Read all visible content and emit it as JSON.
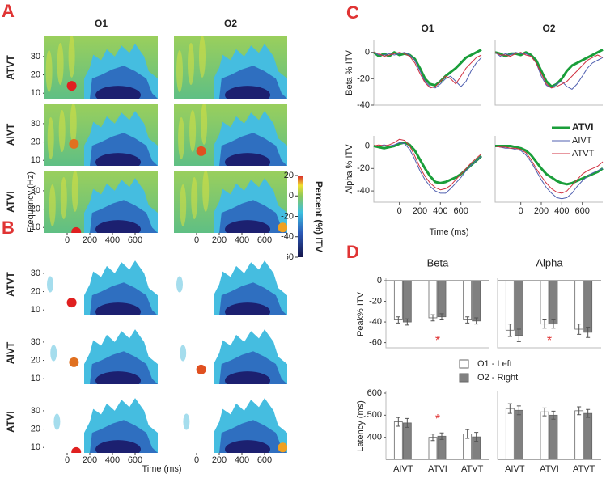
{
  "chart_data": [
    {
      "type": "heatmap",
      "panel": "A",
      "columns": [
        "O1",
        "O2"
      ],
      "rows": [
        "ATVT",
        "AIVT",
        "ATVI"
      ],
      "xlim": [
        -200,
        800
      ],
      "xticks": [
        0,
        200,
        400,
        600
      ],
      "ylim": [
        7,
        41
      ],
      "yticks": [
        10,
        20,
        30
      ],
      "colorbar": {
        "label": "Percent (%) ITV",
        "lim": [
          -60,
          20
        ],
        "ticks": [
          20,
          0,
          -20,
          -40,
          -60
        ]
      }
    },
    {
      "type": "heatmap",
      "panel": "B",
      "rows": [
        "ATVT",
        "AIVT",
        "ATVI"
      ],
      "thresholded": true,
      "xlim": [
        -200,
        800
      ],
      "xticks": [
        0,
        200,
        400,
        600
      ],
      "ylim": [
        7,
        41
      ],
      "yticks": [
        10,
        20,
        30
      ],
      "xlabel": "Time (ms)",
      "ylabel": "Frequency (Hz)"
    },
    {
      "type": "line",
      "panel": "C",
      "columns": [
        "O1",
        "O2"
      ],
      "xlabel": "Time (ms)",
      "x": [
        -250,
        -200,
        -150,
        -100,
        -50,
        0,
        50,
        100,
        150,
        200,
        250,
        300,
        350,
        400,
        450,
        500,
        550,
        600,
        650,
        700,
        750,
        800
      ],
      "xlim": [
        -250,
        800
      ],
      "xticks": [
        0,
        200,
        400,
        600
      ],
      "series": [
        {
          "name": "ATVI",
          "color": "#1a9e3a",
          "width": 3
        },
        {
          "name": "AIVT",
          "color": "#5060b0",
          "width": 1
        },
        {
          "name": "ATVT",
          "color": "#d03040",
          "width": 1
        }
      ],
      "rows": [
        {
          "ylabel": "Beta % ITV",
          "ylim": [
            -40,
            9
          ],
          "yticks": [
            0,
            -20,
            -40
          ],
          "cells": [
            {
              "values": [
                [
                  0,
                  -3,
                  -1,
                  -3,
                  0,
                  -2,
                  -1,
                  -2,
                  -5,
                  -12,
                  -20,
                  -24,
                  -25,
                  -22,
                  -18,
                  -15,
                  -12,
                  -8,
                  -4,
                  -2,
                  0,
                  2
                ],
                [
                  0,
                  -2,
                  -2,
                  -1,
                  -2,
                  -1,
                  0,
                  -2,
                  -6,
                  -14,
                  -22,
                  -26,
                  -27,
                  -24,
                  -20,
                  -18,
                  -22,
                  -26,
                  -22,
                  -14,
                  -8,
                  -4
                ],
                [
                  0,
                  -1,
                  -3,
                  -2,
                  -1,
                  0,
                  -1,
                  -3,
                  -8,
                  -16,
                  -23,
                  -27,
                  -26,
                  -22,
                  -18,
                  -20,
                  -24,
                  -18,
                  -12,
                  -8,
                  -4,
                  -2
                ]
              ]
            },
            {
              "values": [
                [
                  0,
                  -1,
                  -3,
                  -1,
                  -1,
                  -2,
                  0,
                  -2,
                  -6,
                  -14,
                  -22,
                  -26,
                  -24,
                  -20,
                  -14,
                  -10,
                  -8,
                  -6,
                  -4,
                  -2,
                  0,
                  2
                ],
                [
                  0,
                  -3,
                  -1,
                  -2,
                  0,
                  -1,
                  -1,
                  -3,
                  -8,
                  -18,
                  -25,
                  -27,
                  -24,
                  -22,
                  -26,
                  -28,
                  -24,
                  -18,
                  -12,
                  -8,
                  -6,
                  -4
                ],
                [
                  0,
                  -2,
                  -2,
                  -3,
                  -1,
                  0,
                  -2,
                  -3,
                  -8,
                  -16,
                  -24,
                  -27,
                  -26,
                  -24,
                  -22,
                  -18,
                  -14,
                  -10,
                  -6,
                  -4,
                  -2,
                  -4
                ]
              ]
            }
          ]
        },
        {
          "ylabel": "Alpha % ITV",
          "ylim": [
            -50,
            9
          ],
          "yticks": [
            0,
            -20,
            -40
          ],
          "legend": "upper right",
          "cells": [
            {
              "values": [
                [
                  0,
                  -1,
                  -2,
                  -1,
                  0,
                  2,
                  3,
                  1,
                  -4,
                  -12,
                  -20,
                  -27,
                  -32,
                  -33,
                  -32,
                  -30,
                  -28,
                  -25,
                  -21,
                  -17,
                  -13,
                  -9
                ],
                [
                  0,
                  0,
                  1,
                  0,
                  1,
                  3,
                  2,
                  -3,
                  -12,
                  -22,
                  -30,
                  -36,
                  -40,
                  -42,
                  -42,
                  -38,
                  -33,
                  -28,
                  -22,
                  -17,
                  -13,
                  -9
                ],
                [
                  0,
                  1,
                  0,
                  1,
                  3,
                  6,
                  5,
                  0,
                  -9,
                  -19,
                  -27,
                  -33,
                  -37,
                  -39,
                  -38,
                  -35,
                  -30,
                  -25,
                  -20,
                  -15,
                  -11,
                  -7
                ]
              ]
            },
            {
              "values": [
                [
                  0,
                  0,
                  0,
                  0,
                  -1,
                  -2,
                  -4,
                  -8,
                  -14,
                  -20,
                  -25,
                  -28,
                  -31,
                  -33,
                  -34,
                  -33,
                  -31,
                  -29,
                  -27,
                  -25,
                  -23,
                  -20
                ],
                [
                  0,
                  -1,
                  -2,
                  -2,
                  -3,
                  -4,
                  -8,
                  -14,
                  -22,
                  -30,
                  -37,
                  -42,
                  -46,
                  -47,
                  -46,
                  -42,
                  -36,
                  -31,
                  -27,
                  -24,
                  -22,
                  -20
                ],
                [
                  0,
                  -1,
                  -1,
                  -2,
                  -2,
                  -3,
                  -6,
                  -12,
                  -20,
                  -27,
                  -33,
                  -38,
                  -41,
                  -42,
                  -40,
                  -35,
                  -30,
                  -25,
                  -22,
                  -20,
                  -18,
                  -14
                ]
              ]
            }
          ]
        }
      ]
    },
    {
      "type": "bar",
      "panel": "D",
      "columns": [
        "Beta",
        "Alpha"
      ],
      "categories": [
        "AIVT",
        "ATVI",
        "ATVT"
      ],
      "series": [
        {
          "name": "O1 - Left",
          "color": "#ffffff"
        },
        {
          "name": "O2 - Right",
          "color": "#808080"
        }
      ],
      "rows": [
        {
          "ylabel": "Peak% ITV",
          "ylim": [
            -65,
            0
          ],
          "yticks": [
            0,
            -20,
            -40,
            -60
          ],
          "cells": [
            {
              "values": [
                [
                  -38,
                  -36,
                  -38
                ],
                [
                  -40,
                  -35,
                  -39
                ]
              ],
              "errors": [
                [
                  3,
                  3,
                  3
                ],
                [
                  3,
                  3,
                  3
                ]
              ],
              "annotation": "*"
            },
            {
              "values": [
                [
                  -48,
                  -42,
                  -47
                ],
                [
                  -53,
                  -42,
                  -50
                ]
              ],
              "errors": [
                [
                  6,
                  4,
                  5
                ],
                [
                  6,
                  4,
                  5
                ]
              ],
              "annotation": "*"
            }
          ]
        },
        {
          "ylabel": "Latency (ms)",
          "ylim": [
            300,
            600
          ],
          "yticks": [
            400,
            500,
            600
          ],
          "cells": [
            {
              "values": [
                [
                  470,
                  400,
                  415
                ],
                [
                  465,
                  405,
                  402
                ]
              ],
              "errors": [
                [
                  20,
                  15,
                  20
                ],
                [
                  20,
                  15,
                  20
                ]
              ],
              "annotation": "*"
            },
            {
              "values": [
                [
                  530,
                  515,
                  520
                ],
                [
                  522,
                  500,
                  508
                ]
              ],
              "errors": [
                [
                  22,
                  18,
                  18
                ],
                [
                  20,
                  18,
                  18
                ]
              ]
            }
          ]
        }
      ]
    }
  ]
}
